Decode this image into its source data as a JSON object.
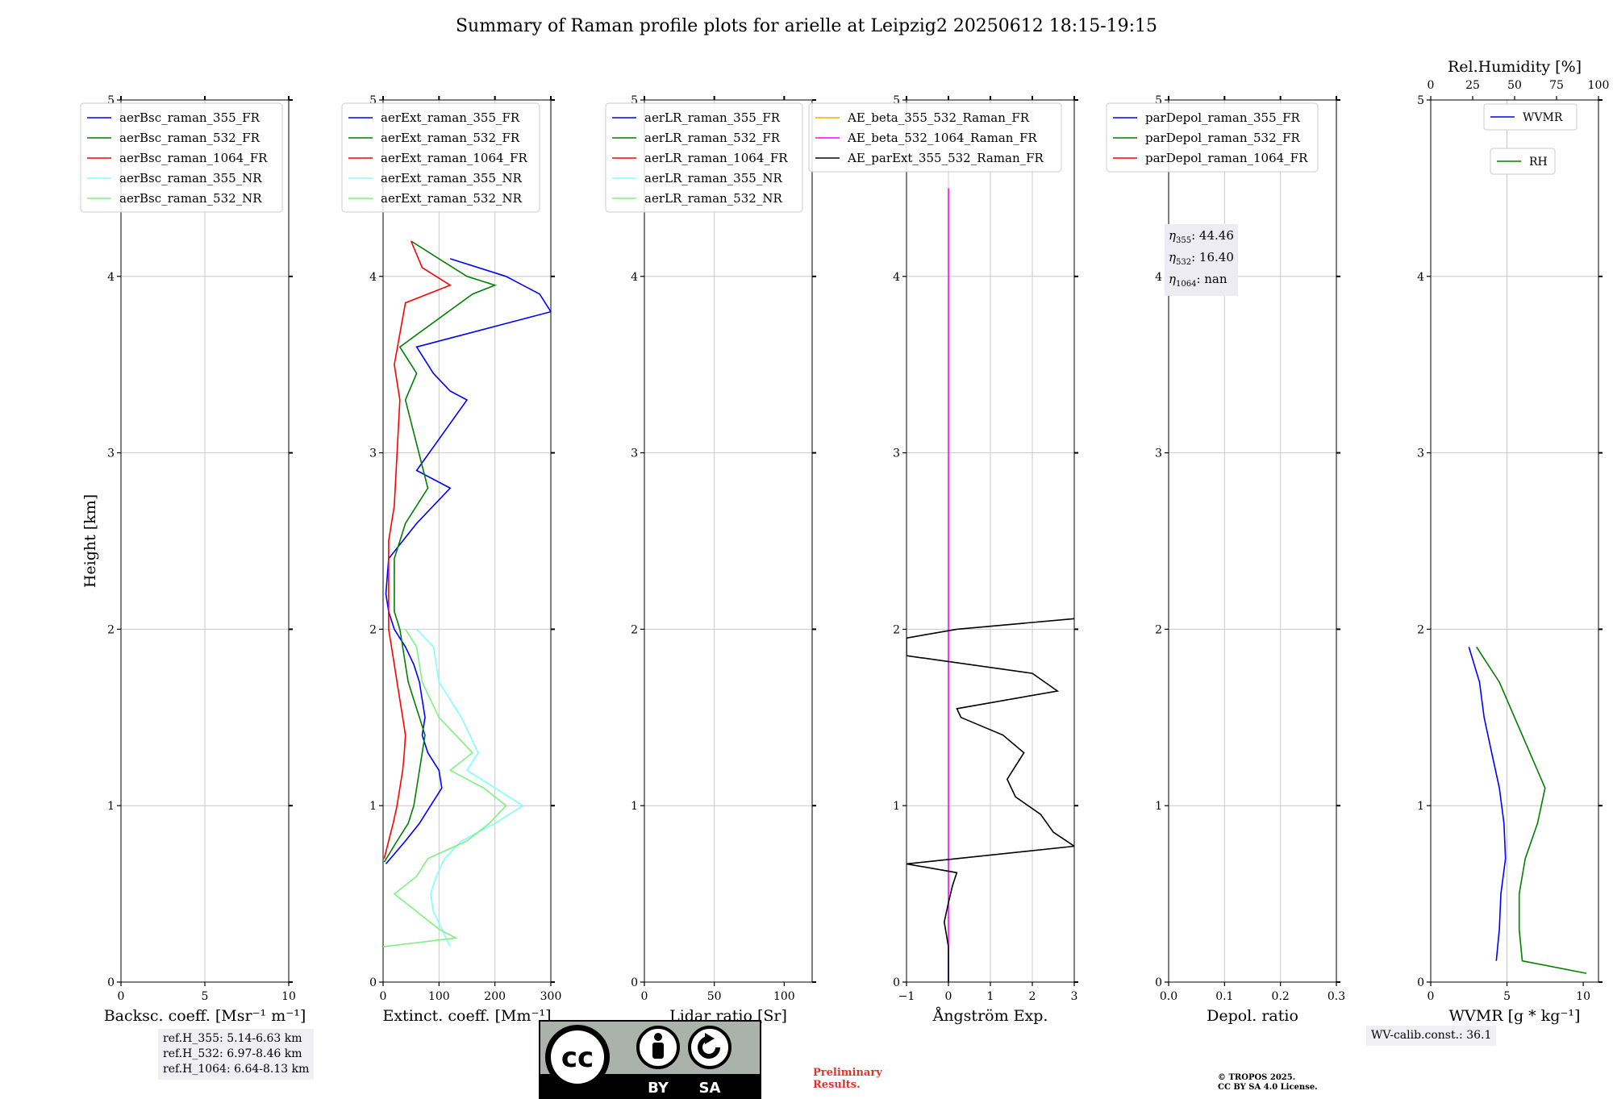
{
  "title": "Summary of Raman profile plots for arielle at Leipzig2 20250612 18:15-19:15",
  "colors": {
    "ch355": "#0000ff",
    "ch532": "#008000",
    "ch1064": "#ff0000",
    "nr355": "#80ffff",
    "nr532": "#80f080",
    "ae1": "#ffa500",
    "ae2": "#ff00ff",
    "ae3": "#000000",
    "grid": "#c8c8c8"
  },
  "y_axis": {
    "label": "Height [km]",
    "ticks": [
      "0",
      "1",
      "2",
      "3",
      "4",
      "5"
    ],
    "ylim": [
      0,
      5
    ]
  },
  "panels": [
    {
      "id": "bsc",
      "xlabel": "Backsc. coeff. [Msr⁻¹ m⁻¹]",
      "xlim": [
        0,
        10
      ],
      "xticks": [
        0,
        5,
        10
      ],
      "xtick_labels": [
        "0",
        "5",
        "10"
      ],
      "legend": [
        {
          "label": "aerBsc_raman_355_FR",
          "color": "#0000ff"
        },
        {
          "label": "aerBsc_raman_532_FR",
          "color": "#008000"
        },
        {
          "label": "aerBsc_raman_1064_FR",
          "color": "#ff0000"
        },
        {
          "label": "aerBsc_raman_355_NR",
          "color": "#80ffff"
        },
        {
          "label": "aerBsc_raman_532_NR",
          "color": "#80f080"
        }
      ]
    },
    {
      "id": "ext",
      "xlabel": "Extinct. coeff. [Mm⁻¹]",
      "xlim": [
        0,
        300
      ],
      "xticks": [
        0,
        100,
        200,
        300
      ],
      "xtick_labels": [
        "0",
        "100",
        "200",
        "300"
      ],
      "legend": [
        {
          "label": "aerExt_raman_355_FR",
          "color": "#0000ff"
        },
        {
          "label": "aerExt_raman_532_FR",
          "color": "#008000"
        },
        {
          "label": "aerExt_raman_1064_FR",
          "color": "#ff0000"
        },
        {
          "label": "aerExt_raman_355_NR",
          "color": "#80ffff"
        },
        {
          "label": "aerExt_raman_532_NR",
          "color": "#80f080"
        }
      ]
    },
    {
      "id": "lr",
      "xlabel": "Lidar ratio [Sr]",
      "xlim": [
        0,
        120
      ],
      "xticks": [
        0,
        50,
        100
      ],
      "xtick_labels": [
        "0",
        "50",
        "100"
      ],
      "legend": [
        {
          "label": "aerLR_raman_355_FR",
          "color": "#0000ff"
        },
        {
          "label": "aerLR_raman_532_FR",
          "color": "#008000"
        },
        {
          "label": "aerLR_raman_1064_FR",
          "color": "#ff0000"
        },
        {
          "label": "aerLR_raman_355_NR",
          "color": "#80ffff"
        },
        {
          "label": "aerLR_raman_532_NR",
          "color": "#80f080"
        }
      ]
    },
    {
      "id": "ae",
      "xlabel": "Ångström Exp.",
      "xlim": [
        -1,
        3
      ],
      "xticks": [
        -1,
        0,
        1,
        2,
        3
      ],
      "xtick_labels": [
        "−1",
        "0",
        "1",
        "2",
        "3"
      ],
      "legend": [
        {
          "label": "AE_beta_355_532_Raman_FR",
          "color": "#ffa500"
        },
        {
          "label": "AE_beta_532_1064_Raman_FR",
          "color": "#ff00ff"
        },
        {
          "label": "AE_parExt_355_532_Raman_FR",
          "color": "#000000"
        }
      ]
    },
    {
      "id": "dep",
      "xlabel": "Depol. ratio",
      "xlim": [
        0,
        0.3
      ],
      "xticks": [
        0,
        0.1,
        0.2,
        0.3
      ],
      "xtick_labels": [
        "0.0",
        "0.1",
        "0.2",
        "0.3"
      ],
      "legend": [
        {
          "label": "parDepol_raman_355_FR",
          "color": "#0000ff"
        },
        {
          "label": "parDepol_raman_532_FR",
          "color": "#008000"
        },
        {
          "label": "parDepol_raman_1064_FR",
          "color": "#ff0000"
        }
      ]
    },
    {
      "id": "wv",
      "xlabel": "WVMR [g * kg⁻¹]",
      "xlim": [
        0,
        11
      ],
      "xticks": [
        0,
        5,
        10
      ],
      "xtick_labels": [
        "0",
        "5",
        "10"
      ],
      "top_xlabel": "Rel.Humidity [%]",
      "top_xlim": [
        0,
        100
      ],
      "top_xticks": [
        0,
        25,
        50,
        75,
        100
      ],
      "top_xtick_labels": [
        "0",
        "25",
        "50",
        "75",
        "100"
      ],
      "legend": [
        {
          "label": "WVMR",
          "color": "#0000ff"
        },
        {
          "label": "RH",
          "color": "#008000"
        }
      ]
    }
  ],
  "ref_heights": [
    "ref.H_355: 5.14-6.63 km",
    "ref.H_532: 6.97-8.46 km",
    "ref.H_1064: 6.64-8.13 km"
  ],
  "eta": [
    {
      "sym": "η",
      "sub": "355",
      "value": ": 44.46"
    },
    {
      "sym": "η",
      "sub": "532",
      "value": ": 16.40"
    },
    {
      "sym": "η",
      "sub": "1064",
      "value": ": nan"
    }
  ],
  "wv_calib": "WV-calib.const.: 36.1",
  "preliminary": [
    "Preliminary",
    "Results."
  ],
  "copyright": [
    "© TROPOS 2025.",
    "CC BY SA 4.0 License."
  ],
  "license_badge": {
    "labels": [
      "BY",
      "SA"
    ],
    "logo": "cc-by-sa-badge"
  },
  "chart_data": [
    {
      "type": "line",
      "panel": "bsc",
      "title": "",
      "xlabel": "Backsc. coeff. [Msr⁻¹ m⁻¹]",
      "ylabel": "Height [km]",
      "xlim": [
        0,
        10
      ],
      "ylim": [
        0,
        5
      ],
      "grid": true,
      "legend_position": "top",
      "series": []
    },
    {
      "type": "line",
      "panel": "ext",
      "title": "",
      "xlabel": "Extinct. coeff. [Mm⁻¹]",
      "ylabel": "Height [km]",
      "xlim": [
        0,
        300
      ],
      "ylim": [
        0,
        5
      ],
      "grid": true,
      "legend_position": "top",
      "series": [
        {
          "name": "aerExt_raman_355_FR",
          "color": "#0000ff",
          "y": [
            0.67,
            0.8,
            0.9,
            1.0,
            1.1,
            1.2,
            1.3,
            1.4,
            1.5,
            1.6,
            1.7,
            1.8,
            1.9,
            2.0,
            2.1,
            2.2,
            2.4,
            2.6,
            2.8,
            2.9,
            3.3,
            3.35,
            3.45,
            3.6,
            3.8,
            3.9,
            4.0,
            4.1
          ],
          "x": [
            5,
            40,
            65,
            85,
            105,
            100,
            80,
            70,
            75,
            70,
            65,
            55,
            40,
            20,
            10,
            5,
            10,
            60,
            120,
            60,
            150,
            120,
            90,
            60,
            300,
            280,
            220,
            120
          ]
        },
        {
          "name": "aerExt_raman_532_FR",
          "color": "#008000",
          "y": [
            0.68,
            0.8,
            0.9,
            1.0,
            1.1,
            1.2,
            1.3,
            1.4,
            1.5,
            1.6,
            1.7,
            1.8,
            1.9,
            2.0,
            2.1,
            2.4,
            2.6,
            2.8,
            3.3,
            3.45,
            3.6,
            3.9,
            3.95,
            4.0,
            4.1,
            4.2
          ],
          "x": [
            2,
            25,
            45,
            55,
            60,
            65,
            70,
            75,
            65,
            55,
            45,
            40,
            35,
            30,
            20,
            20,
            40,
            80,
            40,
            60,
            30,
            160,
            200,
            150,
            100,
            50
          ]
        },
        {
          "name": "aerExt_raman_1064_FR",
          "color": "#ff0000",
          "y": [
            0.7,
            0.8,
            0.9,
            1.0,
            1.1,
            1.2,
            1.3,
            1.4,
            1.5,
            1.6,
            1.7,
            1.8,
            1.9,
            2.0,
            2.5,
            2.7,
            3.3,
            3.5,
            3.85,
            3.95,
            4.05,
            4.2
          ],
          "x": [
            2,
            10,
            18,
            25,
            30,
            35,
            38,
            40,
            35,
            30,
            25,
            20,
            15,
            10,
            10,
            20,
            30,
            20,
            40,
            120,
            70,
            50
          ]
        },
        {
          "name": "aerExt_raman_355_NR",
          "color": "#80ffff",
          "y": [
            0.2,
            0.4,
            0.5,
            0.6,
            0.7,
            0.8,
            0.9,
            1.0,
            1.1,
            1.2,
            1.3,
            1.5,
            1.7,
            1.9,
            2.0
          ],
          "x": [
            120,
            90,
            85,
            95,
            110,
            140,
            200,
            250,
            200,
            150,
            170,
            140,
            100,
            90,
            60
          ]
        },
        {
          "name": "aerExt_raman_532_NR",
          "color": "#80f080",
          "y": [
            0.2,
            0.25,
            0.3,
            0.4,
            0.5,
            0.6,
            0.7,
            0.8,
            0.9,
            1.0,
            1.1,
            1.2,
            1.3,
            1.5,
            1.7,
            1.9,
            2.0
          ],
          "x": [
            0,
            130,
            100,
            60,
            20,
            60,
            80,
            150,
            190,
            220,
            180,
            120,
            160,
            100,
            70,
            60,
            40
          ]
        }
      ]
    },
    {
      "type": "line",
      "panel": "lr",
      "title": "",
      "xlabel": "Lidar ratio [Sr]",
      "ylabel": "Height [km]",
      "xlim": [
        0,
        120
      ],
      "ylim": [
        0,
        5
      ],
      "grid": true,
      "legend_position": "top",
      "series": []
    },
    {
      "type": "line",
      "panel": "ae",
      "title": "",
      "xlabel": "Ångström Exp.",
      "ylabel": "Height [km]",
      "xlim": [
        -1,
        3
      ],
      "ylim": [
        0,
        5
      ],
      "grid": true,
      "legend_position": "top",
      "series": [
        {
          "name": "AE_beta_532_1064_Raman_FR",
          "color": "#ff00ff",
          "y": [
            0,
            4.5
          ],
          "x": [
            0,
            0
          ]
        },
        {
          "name": "AE_parExt_355_532_Raman_FR",
          "color": "#000000",
          "y": [
            0,
            0.2,
            0.34,
            0.45,
            0.55,
            0.62,
            0.67,
            0.77,
            0.85,
            0.95,
            1.05,
            1.15,
            1.3,
            1.4,
            1.5,
            1.55,
            1.65,
            1.75,
            1.85,
            1.95,
            2.0,
            2.06
          ],
          "x": [
            0,
            0,
            -0.1,
            0,
            0.1,
            0.2,
            -1,
            3,
            2.5,
            2.2,
            1.6,
            1.4,
            1.8,
            1.3,
            0.3,
            0.2,
            2.6,
            2.0,
            -1,
            -1,
            0.2,
            3
          ]
        }
      ]
    },
    {
      "type": "line",
      "panel": "dep",
      "title": "",
      "xlabel": "Depol. ratio",
      "ylabel": "Height [km]",
      "xlim": [
        0,
        0.3
      ],
      "ylim": [
        0,
        5
      ],
      "grid": true,
      "legend_position": "top",
      "series": []
    },
    {
      "type": "line",
      "panel": "wv",
      "title": "",
      "xlabel": "WVMR [g * kg⁻¹]",
      "ylabel": "Height [km]",
      "xlim": [
        0,
        11
      ],
      "ylim": [
        0,
        5
      ],
      "grid": true,
      "legend_position": "top-right",
      "series": [
        {
          "name": "WVMR",
          "color": "#0000ff",
          "y": [
            0.12,
            0.3,
            0.5,
            0.7,
            0.9,
            1.1,
            1.3,
            1.5,
            1.7,
            1.9
          ],
          "x": [
            4.3,
            4.5,
            4.6,
            4.9,
            4.8,
            4.5,
            4.0,
            3.5,
            3.2,
            2.5
          ]
        },
        {
          "name": "RH",
          "color": "#008000",
          "y": [
            0.05,
            0.12,
            0.3,
            0.5,
            0.7,
            0.9,
            1.1,
            1.3,
            1.5,
            1.7,
            1.9
          ],
          "x": [
            10.2,
            6.0,
            5.8,
            5.8,
            6.2,
            7.0,
            7.5,
            6.5,
            5.5,
            4.5,
            3.0
          ]
        }
      ]
    }
  ]
}
